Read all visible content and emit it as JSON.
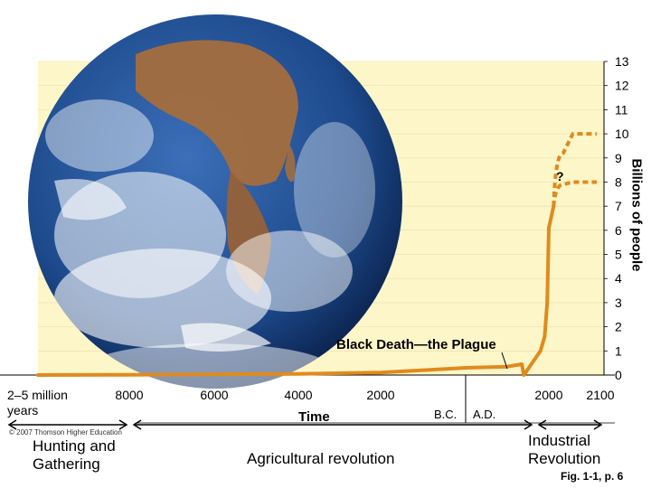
{
  "chart_data": {
    "type": "line",
    "ylabel": "Billions of people",
    "xlabel": "Time",
    "y_ticks": [
      "0",
      "1",
      "2",
      "3",
      "4",
      "5",
      "6",
      "7",
      "8",
      "9",
      "10",
      "11",
      "12",
      "13"
    ],
    "ylim": [
      0,
      13
    ],
    "x_ticks": [
      "2–5 million years",
      "8000",
      "6000",
      "4000",
      "2000",
      "2000",
      "2100"
    ],
    "era_divider": {
      "left": "B.C.",
      "right": "A.D."
    },
    "series": [
      {
        "style": "solid",
        "points": [
          {
            "time": "2–5 million years",
            "billions": 0.0
          },
          {
            "time": "8000 B.C.",
            "billions": 0.01
          },
          {
            "time": "4000 B.C.",
            "billions": 0.05
          },
          {
            "time": "2000 B.C.",
            "billions": 0.1
          },
          {
            "time": "0",
            "billions": 0.3
          },
          {
            "time": "1000 A.D.",
            "billions": 0.35
          },
          {
            "time": "1350 A.D.",
            "billions": 0.45
          },
          {
            "time": "1400 A.D.",
            "billions": 0.0
          },
          {
            "time": "1800 A.D.",
            "billions": 1.0
          },
          {
            "time": "1900 A.D.",
            "billions": 1.6
          },
          {
            "time": "1960 A.D.",
            "billions": 3.0
          },
          {
            "time": "2000 A.D.",
            "billions": 6.1
          },
          {
            "time": "2010 A.D.",
            "billions": 7.0
          }
        ]
      },
      {
        "style": "dotted",
        "points": [
          {
            "time": "2010 A.D.",
            "billions": 7.0
          },
          {
            "time": "2030 A.D.",
            "billions": 9.2
          },
          {
            "time": "2050 A.D.",
            "billions": 10.0
          },
          {
            "time": "2100 A.D.",
            "billions": 10.0
          }
        ]
      },
      {
        "style": "dotted",
        "points": [
          {
            "time": "2010 A.D.",
            "billions": 7.0
          },
          {
            "time": "2030 A.D.",
            "billions": 7.9
          },
          {
            "time": "2050 A.D.",
            "billions": 8.0
          },
          {
            "time": "2100 A.D.",
            "billions": 8.0
          }
        ]
      }
    ],
    "annotations": [
      "Black Death—the Plague",
      "?"
    ],
    "colors": {
      "line": "#e08a1e",
      "plot_background": "#fdf6c8",
      "ocean": "#1d4a8c",
      "land": "#a86e3b",
      "cloud": "#ffffff"
    }
  },
  "eras": {
    "hunting": "Hunting and\nGathering",
    "agricultural": "Agricultural revolution",
    "industrial": "Industrial\nRevolution"
  },
  "figure_ref": "Fig. 1-1, p. 6",
  "copyright": "© 2007 Thomson Higher Education"
}
